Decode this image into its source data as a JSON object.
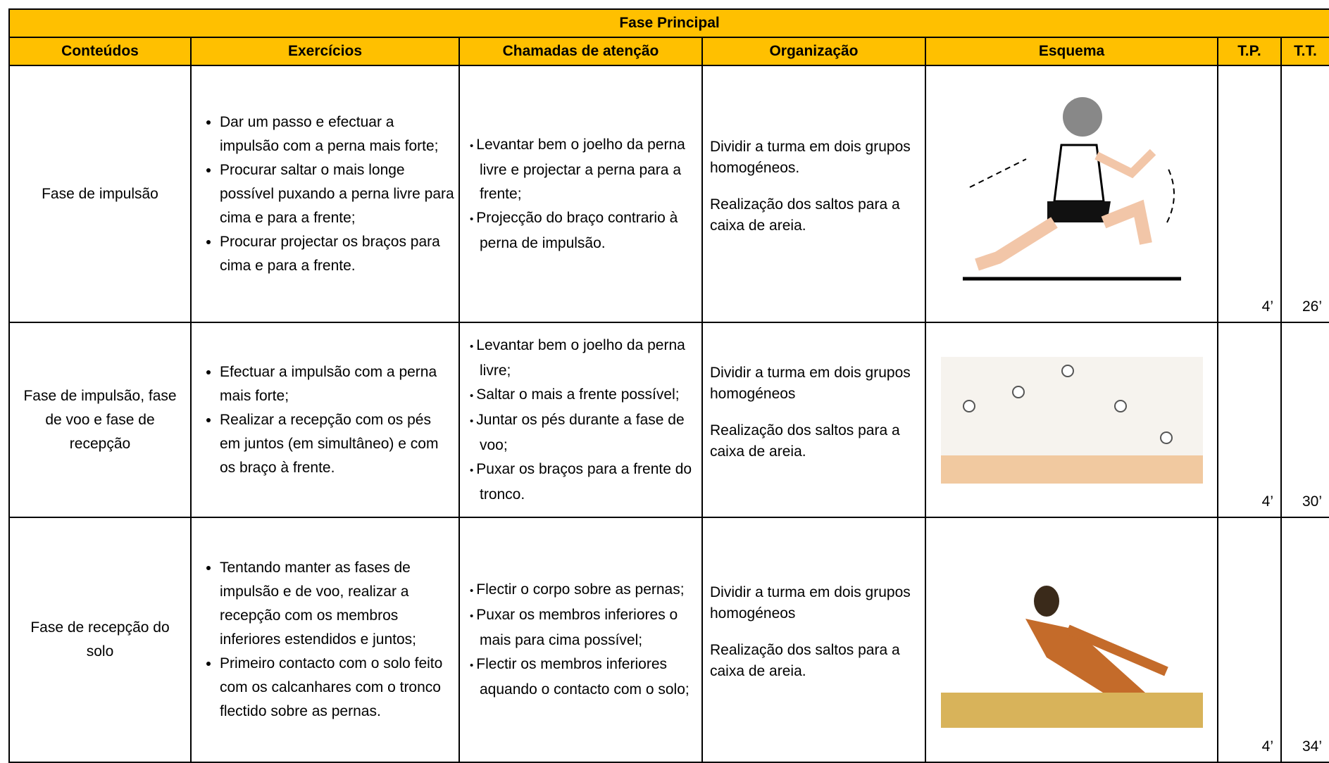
{
  "table": {
    "title": "Fase Principal",
    "headers": [
      "Conteúdos",
      "Exercícios",
      "Chamadas de atenção",
      "Organização",
      "Esquema",
      "T.P.",
      "T.T."
    ],
    "rows": [
      {
        "conteudo": "Fase de impulsão",
        "exercicios": [
          "Dar um passo e efectuar a impulsão com a perna mais forte;",
          "Procurar saltar o mais longe possível puxando a perna livre para cima e para a frente;",
          "Procurar projectar os braços para cima e para a frente."
        ],
        "chamadas": [
          "Levantar bem o joelho da perna livre e projectar a perna para a frente;",
          "Projecção do braço contrario à perna de impulsão."
        ],
        "organizacao": [
          "Dividir a turma em dois grupos homogéneos.",
          "Realização dos saltos para a caixa de areia."
        ],
        "tp": "4’",
        "tt": "26’"
      },
      {
        "conteudo": "Fase de impulsão, fase de voo e fase de recepção",
        "exercicios": [
          "Efectuar a impulsão com a perna mais forte;",
          "Realizar a recepção com os pés em juntos (em simultâneo) e com os braço à frente."
        ],
        "chamadas": [
          "Levantar bem o joelho da perna livre;",
          "Saltar o mais a frente possível;",
          "Juntar os pés durante a fase de voo;",
          "Puxar os braços para a frente do tronco."
        ],
        "organizacao": [
          "Dividir a turma em dois grupos homogéneos",
          "Realização dos saltos para a caixa de areia."
        ],
        "tp": "4’",
        "tt": "30’"
      },
      {
        "conteudo": "Fase de recepção do solo",
        "exercicios": [
          "Tentando manter as fases de impulsão e de voo, realizar a recepção com os membros inferiores estendidos e juntos;",
          "Primeiro contacto com o solo feito com os calcanhares com o tronco flectido sobre as pernas."
        ],
        "chamadas": [
          "Flectir o corpo sobre as pernas;",
          "Puxar os membros inferiores o mais para cima possível;",
          "Flectir os membros inferiores aquando o contacto com o solo;"
        ],
        "organizacao": [
          "Dividir a turma em dois grupos homogéneos",
          "Realização dos saltos para a caixa de areia."
        ],
        "tp": "4’",
        "tt": "34’"
      }
    ]
  }
}
